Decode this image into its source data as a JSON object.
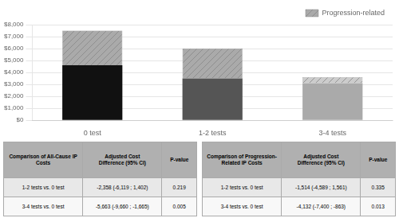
{
  "chart_data": {
    "type": "bar",
    "categories": [
      "0 test",
      "1-2 tests",
      "3-4 tests"
    ],
    "stacked": true,
    "series": [
      {
        "colors": [
          "#111111",
          "#555555",
          "#aaaaaa"
        ],
        "values": [
          4600,
          3500,
          3100
        ]
      },
      {
        "name": "Progression-related",
        "colors": [
          "#aaaaaa",
          "#aaaaaa",
          "#cccccc"
        ],
        "values": [
          2900,
          2500,
          500
        ]
      }
    ],
    "ylim": [
      0,
      8000
    ],
    "yticks": [
      {
        "value": 0,
        "label": "$0"
      },
      {
        "value": 1000,
        "label": "$1,000"
      },
      {
        "value": 2000,
        "label": "$2,000"
      },
      {
        "value": 3000,
        "label": "$3,000"
      },
      {
        "value": 4000,
        "label": "$4,000"
      },
      {
        "value": 5000,
        "label": "$5,000"
      },
      {
        "value": 6000,
        "label": "$6,000"
      },
      {
        "value": 7000,
        "label": "$7,000"
      },
      {
        "value": 8000,
        "label": "$8,000"
      }
    ],
    "grid": true,
    "legend": "upper right",
    "tables": [
      {
        "headers": [
          "Comparison of All-Cause IP\nCosts",
          "Adjusted Cost\nDifference (95% CI)",
          "P-value"
        ],
        "rows": [
          [
            "1-2 tests vs. 0 test",
            "-2,358 (-6,119 ; 1,402)",
            "0.219"
          ],
          [
            "3-4 tests vs. 0 test",
            "-5,663 (-9,660 ; -1,665)",
            "0.005"
          ]
        ],
        "header_color": "#b0b0b0",
        "row_colors": [
          "#e8e8e8",
          "#f8f8f8"
        ]
      },
      {
        "headers": [
          "Comparison of Progression-\nRelated IP Costs",
          "Adjusted Cost\nDifference (95% CI)",
          "P-value"
        ],
        "rows": [
          [
            "1-2 tests vs. 0 test",
            "-1,514 (-4,589 ; 1,561)",
            "0.335"
          ],
          [
            "3-4 tests vs. 0 test",
            "-4,132 (-7,400 ; -863)",
            "0.013"
          ]
        ],
        "header_color": "#b0b0b0",
        "row_colors": [
          "#e8e8e8",
          "#f8f8f8"
        ]
      }
    ]
  }
}
